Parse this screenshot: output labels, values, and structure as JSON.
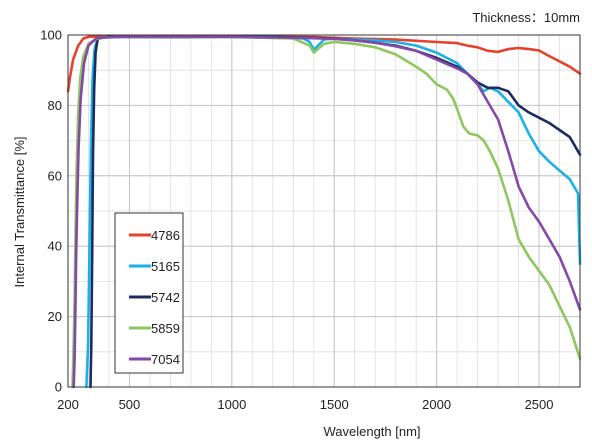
{
  "chart_data": {
    "type": "line",
    "annotation": "Thickness：10mm",
    "xlabel": "Wavelength [nm]",
    "ylabel": "Internal Transmittance [%]",
    "xlim": [
      200,
      2700
    ],
    "ylim": [
      0,
      100
    ],
    "x_ticks": [
      200,
      500,
      1000,
      1500,
      2000,
      2500
    ],
    "y_ticks": [
      0,
      20,
      40,
      60,
      80,
      100
    ],
    "x_minor_step": 100,
    "y_minor_step": 10,
    "grid": true,
    "legend_position": "lower-left",
    "series": [
      {
        "name": "4786",
        "color": "#e8402a",
        "points": [
          [
            200,
            84
          ],
          [
            210,
            88
          ],
          [
            225,
            93
          ],
          [
            250,
            97
          ],
          [
            275,
            99
          ],
          [
            300,
            99.5
          ],
          [
            400,
            99.7
          ],
          [
            800,
            99.7
          ],
          [
            1000,
            99.6
          ],
          [
            1400,
            99.4
          ],
          [
            1500,
            99.2
          ],
          [
            1600,
            99
          ],
          [
            1800,
            98.7
          ],
          [
            2000,
            98
          ],
          [
            2100,
            97.7
          ],
          [
            2150,
            97
          ],
          [
            2200,
            96.5
          ],
          [
            2250,
            95.5
          ],
          [
            2300,
            95.2
          ],
          [
            2350,
            96
          ],
          [
            2400,
            96.3
          ],
          [
            2450,
            96
          ],
          [
            2500,
            95.6
          ],
          [
            2550,
            94
          ],
          [
            2600,
            92.5
          ],
          [
            2650,
            91
          ],
          [
            2700,
            89
          ]
        ]
      },
      {
        "name": "5165",
        "color": "#1ab2e6",
        "points": [
          [
            290,
            0
          ],
          [
            298,
            12
          ],
          [
            305,
            40
          ],
          [
            312,
            68
          ],
          [
            320,
            88
          ],
          [
            330,
            96
          ],
          [
            345,
            99
          ],
          [
            400,
            99.6
          ],
          [
            800,
            99.6
          ],
          [
            1200,
            99.5
          ],
          [
            1350,
            99
          ],
          [
            1380,
            98
          ],
          [
            1400,
            95.8
          ],
          [
            1420,
            97
          ],
          [
            1450,
            98.7
          ],
          [
            1500,
            99
          ],
          [
            1700,
            98.5
          ],
          [
            1800,
            98
          ],
          [
            1900,
            97
          ],
          [
            2000,
            95
          ],
          [
            2100,
            92
          ],
          [
            2150,
            89
          ],
          [
            2200,
            86
          ],
          [
            2230,
            84
          ],
          [
            2260,
            85
          ],
          [
            2300,
            84
          ],
          [
            2350,
            81
          ],
          [
            2400,
            78
          ],
          [
            2450,
            72
          ],
          [
            2500,
            67
          ],
          [
            2550,
            64
          ],
          [
            2600,
            61.5
          ],
          [
            2650,
            59
          ],
          [
            2690,
            55
          ],
          [
            2700,
            35
          ]
        ]
      },
      {
        "name": "5742",
        "color": "#1c2c5e",
        "points": [
          [
            310,
            0
          ],
          [
            314,
            12
          ],
          [
            318,
            38
          ],
          [
            322,
            66
          ],
          [
            328,
            85
          ],
          [
            335,
            95
          ],
          [
            345,
            99
          ],
          [
            400,
            99.5
          ],
          [
            700,
            99.4
          ],
          [
            800,
            99.4
          ],
          [
            1000,
            99.5
          ],
          [
            1200,
            99.4
          ],
          [
            1400,
            99.2
          ],
          [
            1500,
            99
          ],
          [
            1600,
            98.5
          ],
          [
            1700,
            97.8
          ],
          [
            1800,
            97
          ],
          [
            1900,
            95.5
          ],
          [
            2000,
            93.5
          ],
          [
            2100,
            91
          ],
          [
            2150,
            89
          ],
          [
            2200,
            86.5
          ],
          [
            2250,
            85
          ],
          [
            2300,
            85
          ],
          [
            2350,
            84
          ],
          [
            2400,
            80
          ],
          [
            2450,
            78
          ],
          [
            2500,
            76.5
          ],
          [
            2550,
            75
          ],
          [
            2600,
            73
          ],
          [
            2650,
            71
          ],
          [
            2700,
            66
          ]
        ]
      },
      {
        "name": "5859",
        "color": "#8ec760",
        "points": [
          [
            222,
            0
          ],
          [
            227,
            10
          ],
          [
            232,
            25
          ],
          [
            237,
            45
          ],
          [
            242,
            62
          ],
          [
            250,
            78
          ],
          [
            260,
            88
          ],
          [
            275,
            94
          ],
          [
            300,
            97.5
          ],
          [
            350,
            99.2
          ],
          [
            500,
            99.6
          ],
          [
            1000,
            99.4
          ],
          [
            1300,
            99
          ],
          [
            1380,
            97
          ],
          [
            1400,
            95
          ],
          [
            1420,
            96
          ],
          [
            1450,
            97.5
          ],
          [
            1500,
            98
          ],
          [
            1600,
            97.5
          ],
          [
            1700,
            96.5
          ],
          [
            1800,
            94.5
          ],
          [
            1900,
            91
          ],
          [
            1950,
            89
          ],
          [
            2000,
            86
          ],
          [
            2050,
            84.5
          ],
          [
            2080,
            82
          ],
          [
            2100,
            79
          ],
          [
            2130,
            74
          ],
          [
            2160,
            72
          ],
          [
            2200,
            71.5
          ],
          [
            2230,
            70
          ],
          [
            2260,
            67
          ],
          [
            2300,
            62
          ],
          [
            2350,
            53
          ],
          [
            2400,
            42
          ],
          [
            2450,
            37
          ],
          [
            2500,
            33
          ],
          [
            2550,
            29
          ],
          [
            2600,
            23
          ],
          [
            2650,
            17
          ],
          [
            2700,
            8
          ]
        ]
      },
      {
        "name": "7054",
        "color": "#8448a8",
        "points": [
          [
            228,
            0
          ],
          [
            232,
            8
          ],
          [
            236,
            22
          ],
          [
            240,
            38
          ],
          [
            245,
            52
          ],
          [
            252,
            68
          ],
          [
            262,
            82
          ],
          [
            278,
            92
          ],
          [
            300,
            97
          ],
          [
            340,
            99.2
          ],
          [
            500,
            99.6
          ],
          [
            1000,
            99.5
          ],
          [
            1200,
            99.3
          ],
          [
            1400,
            99.1
          ],
          [
            1500,
            98.9
          ],
          [
            1600,
            98.5
          ],
          [
            1700,
            97.8
          ],
          [
            1800,
            96.8
          ],
          [
            1900,
            95.5
          ],
          [
            2000,
            93
          ],
          [
            2100,
            90.5
          ],
          [
            2150,
            89
          ],
          [
            2200,
            86
          ],
          [
            2250,
            81
          ],
          [
            2300,
            76
          ],
          [
            2350,
            67
          ],
          [
            2400,
            57
          ],
          [
            2450,
            51
          ],
          [
            2500,
            47
          ],
          [
            2550,
            42
          ],
          [
            2600,
            37
          ],
          [
            2650,
            30
          ],
          [
            2700,
            22
          ]
        ]
      }
    ]
  }
}
